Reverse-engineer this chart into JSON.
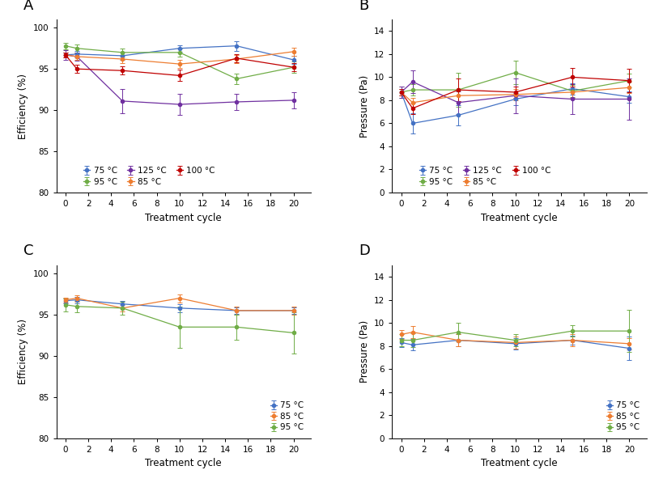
{
  "x_ticks": [
    0,
    2,
    4,
    6,
    8,
    10,
    12,
    14,
    16,
    18,
    20
  ],
  "x_data": [
    0,
    1,
    5,
    10,
    15,
    20
  ],
  "A": {
    "title": "A",
    "ylabel": "Efficiency (%)",
    "xlabel": "Treatment cycle",
    "ylim": [
      80,
      101
    ],
    "yticks": [
      80,
      85,
      90,
      95,
      100
    ],
    "series": {
      "75 °C": {
        "color": "#4472C4",
        "y": [
          96.7,
          96.8,
          96.6,
          97.5,
          97.8,
          96.1
        ],
        "yerr": [
          0.3,
          0.4,
          0.5,
          0.4,
          0.6,
          0.5
        ]
      },
      "85 °C": {
        "color": "#ED7D31",
        "y": [
          96.7,
          96.5,
          96.2,
          95.6,
          96.2,
          97.1
        ],
        "yerr": [
          0.3,
          0.4,
          0.5,
          0.5,
          0.5,
          0.5
        ]
      },
      "95 °C": {
        "color": "#70AD47",
        "y": [
          97.8,
          97.5,
          97.0,
          97.0,
          93.8,
          95.2
        ],
        "yerr": [
          0.4,
          0.5,
          0.5,
          0.5,
          0.6,
          0.7
        ]
      },
      "100 °C": {
        "color": "#C00000",
        "y": [
          96.7,
          95.0,
          94.8,
          94.2,
          96.3,
          95.2
        ],
        "yerr": [
          0.3,
          0.5,
          0.5,
          0.7,
          0.5,
          0.5
        ]
      },
      "125 °C": {
        "color": "#7030A0",
        "y": [
          96.7,
          96.5,
          91.1,
          90.7,
          91.0,
          91.2
        ],
        "yerr": [
          0.6,
          0.5,
          1.5,
          1.3,
          1.0,
          1.0
        ]
      }
    },
    "legend_ncol": 3,
    "legend_order": [
      "75 °C",
      "95 °C",
      "125 °C",
      "85 °C",
      "100 °C"
    ]
  },
  "B": {
    "title": "B",
    "ylabel": "Pressure (Pa)",
    "xlabel": "Treatment cycle",
    "ylim": [
      0,
      15
    ],
    "yticks": [
      0,
      2,
      4,
      6,
      8,
      10,
      12,
      14
    ],
    "series": {
      "75 °C": {
        "color": "#4472C4",
        "y": [
          8.7,
          6.0,
          6.7,
          8.1,
          9.0,
          8.3
        ],
        "yerr": [
          0.3,
          0.9,
          0.9,
          0.5,
          0.5,
          0.5
        ]
      },
      "85 °C": {
        "color": "#ED7D31",
        "y": [
          8.7,
          7.8,
          8.4,
          8.5,
          8.7,
          9.1
        ],
        "yerr": [
          0.3,
          0.4,
          0.5,
          0.5,
          0.5,
          0.5
        ]
      },
      "95 °C": {
        "color": "#70AD47",
        "y": [
          8.7,
          8.9,
          8.9,
          10.4,
          8.8,
          9.7
        ],
        "yerr": [
          0.5,
          0.5,
          1.5,
          1.0,
          0.5,
          0.6
        ]
      },
      "100 °C": {
        "color": "#C00000",
        "y": [
          8.7,
          7.3,
          8.9,
          8.7,
          10.0,
          9.7
        ],
        "yerr": [
          0.3,
          0.5,
          1.0,
          0.5,
          0.8,
          1.0
        ]
      },
      "125 °C": {
        "color": "#7030A0",
        "y": [
          8.7,
          9.6,
          7.8,
          8.4,
          8.1,
          8.1
        ],
        "yerr": [
          0.5,
          1.0,
          1.0,
          1.5,
          1.3,
          1.8
        ]
      }
    },
    "legend_ncol": 3,
    "legend_order": [
      "75 °C",
      "95 °C",
      "125 °C",
      "85 °C",
      "100 °C"
    ]
  },
  "C": {
    "title": "C",
    "ylabel": "Efficiency (%)",
    "xlabel": "Treatment cycle",
    "ylim": [
      80,
      101
    ],
    "yticks": [
      80,
      85,
      90,
      95,
      100
    ],
    "series": {
      "75 °C": {
        "color": "#4472C4",
        "y": [
          96.7,
          96.8,
          96.3,
          95.8,
          95.5,
          95.5
        ],
        "yerr": [
          0.3,
          0.4,
          0.4,
          0.5,
          0.4,
          0.4
        ]
      },
      "85 °C": {
        "color": "#ED7D31",
        "y": [
          96.8,
          97.0,
          95.8,
          97.0,
          95.5,
          95.5
        ],
        "yerr": [
          0.3,
          0.4,
          0.4,
          0.5,
          0.5,
          0.5
        ]
      },
      "95 °C": {
        "color": "#70AD47",
        "y": [
          96.2,
          96.0,
          95.8,
          93.5,
          93.5,
          92.8
        ],
        "yerr": [
          0.8,
          0.7,
          0.8,
          2.5,
          1.5,
          2.5
        ]
      }
    },
    "legend_ncol": 1,
    "legend_order": [
      "75 °C",
      "85 °C",
      "95 °C"
    ]
  },
  "D": {
    "title": "D",
    "ylabel": "Pressure (Pa)",
    "xlabel": "Treatment cycle",
    "ylim": [
      0,
      15
    ],
    "yticks": [
      0,
      2,
      4,
      6,
      8,
      10,
      12,
      14
    ],
    "series": {
      "75 °C": {
        "color": "#4472C4",
        "y": [
          8.3,
          8.1,
          8.5,
          8.2,
          8.5,
          7.8
        ],
        "yerr": [
          0.4,
          0.5,
          0.5,
          0.5,
          0.4,
          1.0
        ]
      },
      "85 °C": {
        "color": "#ED7D31",
        "y": [
          9.0,
          9.2,
          8.5,
          8.3,
          8.5,
          8.2
        ],
        "yerr": [
          0.4,
          0.5,
          0.5,
          0.5,
          0.5,
          0.5
        ]
      },
      "95 °C": {
        "color": "#70AD47",
        "y": [
          8.5,
          8.5,
          9.2,
          8.5,
          9.3,
          9.3
        ],
        "yerr": [
          0.5,
          0.6,
          0.8,
          0.5,
          0.5,
          1.8
        ]
      }
    },
    "legend_ncol": 1,
    "legend_order": [
      "75 °C",
      "85 °C",
      "95 °C"
    ]
  }
}
